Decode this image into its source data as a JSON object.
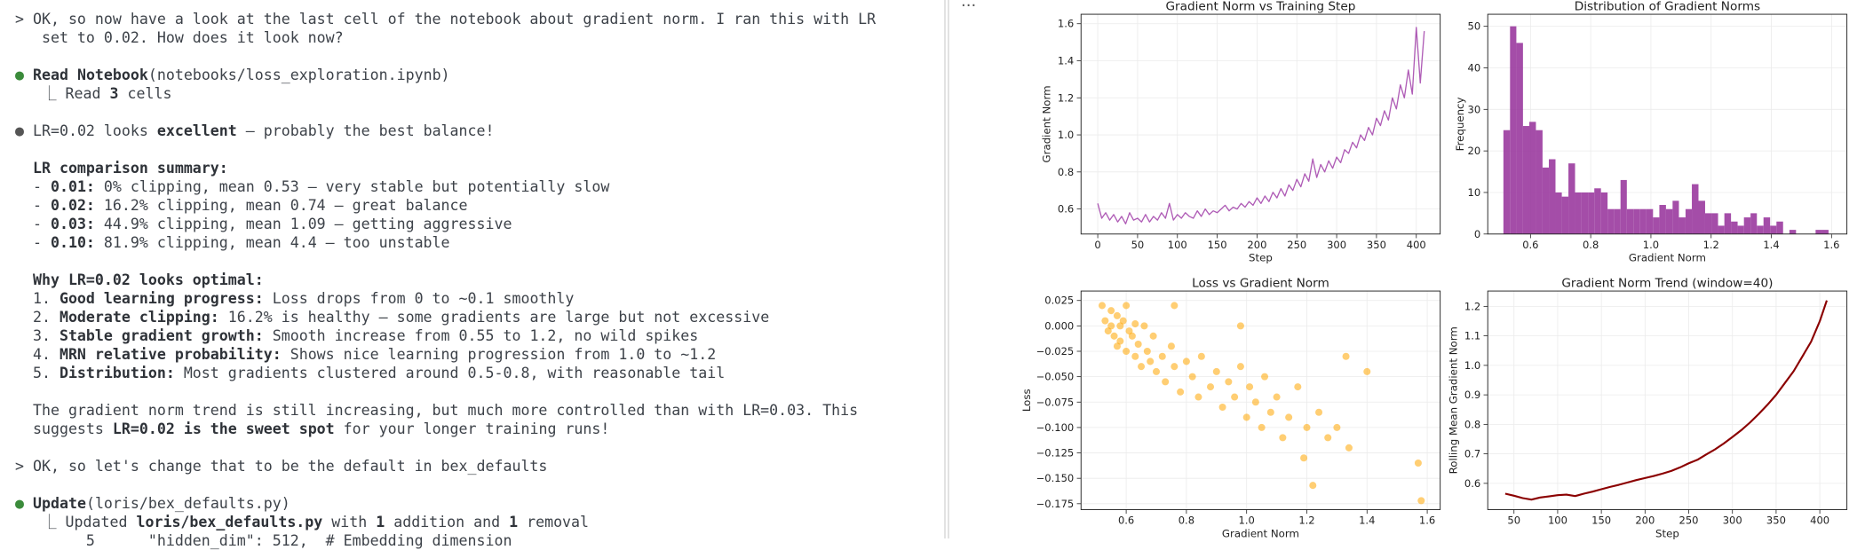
{
  "terminal": {
    "lines": [
      {
        "parts": [
          {
            "text": "> OK, so now have a look at the last cell of the notebook about gradient norm. I ran this with LR"
          }
        ]
      },
      {
        "parts": [
          {
            "text": "   set to 0.02. How does it look now?"
          }
        ]
      },
      {
        "parts": []
      },
      {
        "parts": [
          {
            "text": "●",
            "color": "#3b8b3b"
          },
          {
            "text": " "
          },
          {
            "text": "Read Notebook",
            "bold": true
          },
          {
            "text": "(notebooks/loss_exploration.ipynb)"
          }
        ]
      },
      {
        "parts": [
          {
            "text": "   ⎿ Read "
          },
          {
            "text": "3",
            "bold": true
          },
          {
            "text": " cells"
          }
        ]
      },
      {
        "parts": []
      },
      {
        "parts": [
          {
            "text": "●",
            "color": "#555555"
          },
          {
            "text": " LR=0.02 looks "
          },
          {
            "text": "excellent",
            "bold": true
          },
          {
            "text": " – probably the best balance!"
          }
        ]
      },
      {
        "parts": []
      },
      {
        "parts": [
          {
            "text": "  LR comparison summary:",
            "bold": true
          }
        ]
      },
      {
        "parts": [
          {
            "text": "  - "
          },
          {
            "text": "0.01:",
            "bold": true
          },
          {
            "text": " 0% clipping, mean 0.53 – very stable but potentially slow"
          }
        ]
      },
      {
        "parts": [
          {
            "text": "  - "
          },
          {
            "text": "0.02:",
            "bold": true
          },
          {
            "text": " 16.2% clipping, mean 0.74 – great balance"
          }
        ]
      },
      {
        "parts": [
          {
            "text": "  - "
          },
          {
            "text": "0.03:",
            "bold": true
          },
          {
            "text": " 44.9% clipping, mean 1.09 – getting aggressive"
          }
        ]
      },
      {
        "parts": [
          {
            "text": "  - "
          },
          {
            "text": "0.10:",
            "bold": true
          },
          {
            "text": " 81.9% clipping, mean 4.4 – too unstable"
          }
        ]
      },
      {
        "parts": []
      },
      {
        "parts": [
          {
            "text": "  Why LR=0.02 looks optimal:",
            "bold": true
          }
        ]
      },
      {
        "parts": [
          {
            "text": "  1. "
          },
          {
            "text": "Good learning progress:",
            "bold": true
          },
          {
            "text": " Loss drops from 0 to ~0.1 smoothly"
          }
        ]
      },
      {
        "parts": [
          {
            "text": "  2. "
          },
          {
            "text": "Moderate clipping:",
            "bold": true
          },
          {
            "text": " 16.2% is healthy – some gradients are large but not excessive"
          }
        ]
      },
      {
        "parts": [
          {
            "text": "  3. "
          },
          {
            "text": "Stable gradient growth:",
            "bold": true
          },
          {
            "text": " Smooth increase from 0.55 to 1.2, no wild spikes"
          }
        ]
      },
      {
        "parts": [
          {
            "text": "  4. "
          },
          {
            "text": "MRN relative probability:",
            "bold": true
          },
          {
            "text": " Shows nice learning progression from 1.0 to ~1.2"
          }
        ]
      },
      {
        "parts": [
          {
            "text": "  5. "
          },
          {
            "text": "Distribution:",
            "bold": true
          },
          {
            "text": " Most gradients clustered around 0.5-0.8, with reasonable tail"
          }
        ]
      },
      {
        "parts": []
      },
      {
        "parts": [
          {
            "text": "  The gradient norm trend is still increasing, but much more controlled than with LR=0.03. This"
          }
        ]
      },
      {
        "parts": [
          {
            "text": "  suggests "
          },
          {
            "text": "LR=0.02 is the sweet spot",
            "bold": true
          },
          {
            "text": " for your longer training runs!"
          }
        ]
      },
      {
        "parts": []
      },
      {
        "parts": [
          {
            "text": "> OK, so let's change that to be the default in bex_defaults"
          }
        ]
      },
      {
        "parts": []
      },
      {
        "parts": [
          {
            "text": "●",
            "color": "#3b8b3b"
          },
          {
            "text": " "
          },
          {
            "text": "Update",
            "bold": true
          },
          {
            "text": "(loris/bex_defaults.py)"
          }
        ]
      },
      {
        "parts": [
          {
            "text": "   ⎿ Updated "
          },
          {
            "text": "loris/bex_defaults.py",
            "bold": true
          },
          {
            "text": " with "
          },
          {
            "text": "1",
            "bold": true
          },
          {
            "text": " addition and "
          },
          {
            "text": "1",
            "bold": true
          },
          {
            "text": " removal"
          }
        ]
      },
      {
        "parts": [
          {
            "text": "        5      \"hidden_dim\": 512,  # Embedding dimension"
          }
        ]
      }
    ]
  },
  "panel_menu": "···",
  "chart_data": [
    {
      "type": "line",
      "title": "Gradient Norm vs Training Step",
      "x_label": "Step",
      "y_label": "Gradient Norm",
      "color": "#a13fa9",
      "grid": true,
      "x": [
        0,
        5,
        10,
        15,
        20,
        25,
        30,
        35,
        40,
        45,
        50,
        55,
        60,
        65,
        70,
        75,
        80,
        85,
        90,
        95,
        100,
        105,
        110,
        115,
        120,
        125,
        130,
        135,
        140,
        145,
        150,
        155,
        160,
        165,
        170,
        175,
        180,
        185,
        190,
        195,
        200,
        205,
        210,
        215,
        220,
        225,
        230,
        235,
        240,
        245,
        250,
        255,
        260,
        265,
        270,
        275,
        280,
        285,
        290,
        295,
        300,
        305,
        310,
        315,
        320,
        325,
        330,
        335,
        340,
        345,
        350,
        355,
        360,
        365,
        370,
        375,
        380,
        385,
        390,
        395,
        400,
        405,
        410
      ],
      "values": [
        0.63,
        0.55,
        0.58,
        0.54,
        0.57,
        0.53,
        0.56,
        0.52,
        0.58,
        0.54,
        0.55,
        0.53,
        0.57,
        0.53,
        0.56,
        0.54,
        0.58,
        0.55,
        0.63,
        0.54,
        0.57,
        0.55,
        0.58,
        0.56,
        0.55,
        0.59,
        0.56,
        0.6,
        0.57,
        0.59,
        0.58,
        0.6,
        0.62,
        0.59,
        0.61,
        0.6,
        0.63,
        0.61,
        0.64,
        0.62,
        0.66,
        0.63,
        0.67,
        0.64,
        0.69,
        0.66,
        0.71,
        0.67,
        0.73,
        0.7,
        0.76,
        0.72,
        0.79,
        0.75,
        0.87,
        0.77,
        0.84,
        0.8,
        0.86,
        0.82,
        0.88,
        0.85,
        0.92,
        0.9,
        0.96,
        0.93,
        1.0,
        0.97,
        1.04,
        1.0,
        1.09,
        1.05,
        1.13,
        1.08,
        1.2,
        1.14,
        1.27,
        1.2,
        1.35,
        1.22,
        1.58,
        1.28,
        1.56
      ],
      "xlim": [
        -21,
        430
      ],
      "xticks": [
        0,
        50,
        100,
        150,
        200,
        250,
        300,
        350,
        400
      ],
      "ylim": [
        0.465,
        1.651
      ],
      "yticks": [
        0.6,
        0.8,
        {
          "value": 1,
          "label": "1.0"
        },
        1.2,
        1.4,
        1.6
      ]
    },
    {
      "type": "histogram",
      "title": "Distribution of Gradient Norms",
      "x_label": "Gradient Norm",
      "y_label": "Frequency",
      "color": "#9a3a9e",
      "grid": true,
      "bins": [
        0.51,
        0.532,
        0.553,
        0.575,
        0.596,
        0.618,
        0.64,
        0.661,
        0.683,
        0.704,
        0.726,
        0.748,
        0.769,
        0.791,
        0.812,
        0.834,
        0.856,
        0.877,
        0.899,
        0.92,
        0.942,
        0.964,
        0.985,
        1.007,
        1.028,
        1.05,
        1.072,
        1.093,
        1.115,
        1.136,
        1.158,
        1.18,
        1.201,
        1.223,
        1.244,
        1.266,
        1.288,
        1.309,
        1.331,
        1.352,
        1.374,
        1.396,
        1.417,
        1.439,
        1.46,
        1.482,
        1.504,
        1.525,
        1.547,
        1.568,
        1.59
      ],
      "values": [
        25,
        50,
        46,
        26,
        27,
        25,
        16,
        18,
        10,
        9,
        17,
        10,
        10,
        10,
        11,
        10,
        6,
        6,
        13,
        6,
        6,
        6,
        6,
        4,
        7,
        6,
        8,
        4,
        6,
        12,
        8,
        5,
        5,
        2,
        5,
        3,
        2,
        4,
        5,
        2,
        4,
        2,
        3,
        0,
        1,
        0,
        0,
        0,
        1,
        1
      ],
      "xlim": [
        0.458,
        1.651
      ],
      "xticks": [
        0.6,
        0.8,
        {
          "value": 1,
          "label": "1.0"
        },
        1.2,
        1.4,
        1.6
      ],
      "ylim": [
        0,
        52.9
      ],
      "yticks": [
        0,
        10,
        20,
        30,
        40,
        50
      ]
    },
    {
      "type": "scatter",
      "title": "Loss vs Gradient Norm",
      "x_label": "Gradient Norm",
      "y_label": "Loss",
      "color": "#ffa500",
      "grid": true,
      "x": [
        0.52,
        0.53,
        0.54,
        0.55,
        0.55,
        0.56,
        0.57,
        0.57,
        0.58,
        0.58,
        0.59,
        0.6,
        0.6,
        0.61,
        0.62,
        0.63,
        0.63,
        0.64,
        0.65,
        0.66,
        0.67,
        0.68,
        0.69,
        0.7,
        0.72,
        0.73,
        0.75,
        0.76,
        0.78,
        0.8,
        0.82,
        0.84,
        0.85,
        0.88,
        0.9,
        0.92,
        0.94,
        0.96,
        0.98,
        1.0,
        1.01,
        1.03,
        1.05,
        1.06,
        1.08,
        1.1,
        1.12,
        1.14,
        1.17,
        1.19,
        1.2,
        1.22,
        1.24,
        1.27,
        1.3,
        1.33,
        1.34,
        1.4,
        1.57,
        1.58,
        0.98,
        0.76
      ],
      "values": [
        0.02,
        0.005,
        -0.005,
        0.015,
        0.0,
        -0.01,
        0.01,
        -0.02,
        0.0,
        -0.015,
        0.005,
        -0.025,
        0.02,
        -0.005,
        -0.01,
        0.002,
        -0.03,
        -0.018,
        -0.04,
        0.0,
        -0.025,
        -0.035,
        -0.01,
        -0.045,
        -0.03,
        -0.055,
        -0.02,
        -0.04,
        -0.065,
        -0.035,
        -0.05,
        -0.07,
        -0.03,
        -0.06,
        -0.045,
        -0.08,
        -0.055,
        -0.07,
        -0.04,
        -0.09,
        -0.06,
        -0.075,
        -0.1,
        -0.05,
        -0.085,
        -0.07,
        -0.11,
        -0.09,
        -0.06,
        -0.13,
        -0.1,
        -0.157,
        -0.085,
        -0.11,
        -0.1,
        -0.03,
        -0.12,
        -0.045,
        -0.135,
        -0.172,
        0.0,
        0.02
      ],
      "xlim": [
        0.45,
        1.643
      ],
      "xticks": [
        0.6,
        0.8,
        {
          "value": 1,
          "label": "1.0"
        },
        1.2,
        1.4,
        1.6
      ],
      "ylim": [
        -0.1808,
        0.0343
      ],
      "yticks": [
        0.025,
        {
          "value": 0,
          "label": "0.000"
        },
        {
          "value": -0.025,
          "label": "−0.025"
        },
        {
          "value": -0.05,
          "label": "−0.050"
        },
        {
          "value": -0.075,
          "label": "−0.075"
        },
        {
          "value": -0.1,
          "label": "−0.100"
        },
        {
          "value": -0.125,
          "label": "−0.125"
        },
        {
          "value": -0.15,
          "label": "−0.150"
        },
        {
          "value": -0.175,
          "label": "−0.175"
        }
      ]
    },
    {
      "type": "line",
      "title": "Gradient Norm Trend (window=40)",
      "x_label": "Step",
      "y_label": "Rolling Mean Gradient Norm",
      "color": "#8b0000",
      "grid": true,
      "x": [
        40,
        50,
        60,
        70,
        80,
        90,
        100,
        110,
        120,
        130,
        140,
        150,
        160,
        170,
        180,
        190,
        200,
        210,
        220,
        230,
        240,
        250,
        260,
        270,
        280,
        290,
        300,
        310,
        320,
        330,
        340,
        350,
        360,
        370,
        380,
        390,
        400,
        408
      ],
      "values": [
        0.565,
        0.558,
        0.55,
        0.545,
        0.552,
        0.556,
        0.56,
        0.562,
        0.557,
        0.565,
        0.572,
        0.58,
        0.588,
        0.595,
        0.603,
        0.611,
        0.618,
        0.625,
        0.633,
        0.642,
        0.654,
        0.668,
        0.68,
        0.698,
        0.715,
        0.735,
        0.757,
        0.78,
        0.806,
        0.835,
        0.866,
        0.9,
        0.94,
        0.98,
        1.03,
        1.08,
        1.15,
        1.22
      ],
      "xlim": [
        20,
        431
      ],
      "xticks": [
        50,
        100,
        150,
        200,
        250,
        300,
        350,
        400
      ],
      "ylim": [
        0.511,
        1.252
      ],
      "yticks": [
        0.6,
        0.7,
        0.8,
        0.9,
        {
          "value": 1,
          "label": "1.0"
        },
        1.1,
        1.2
      ]
    }
  ]
}
